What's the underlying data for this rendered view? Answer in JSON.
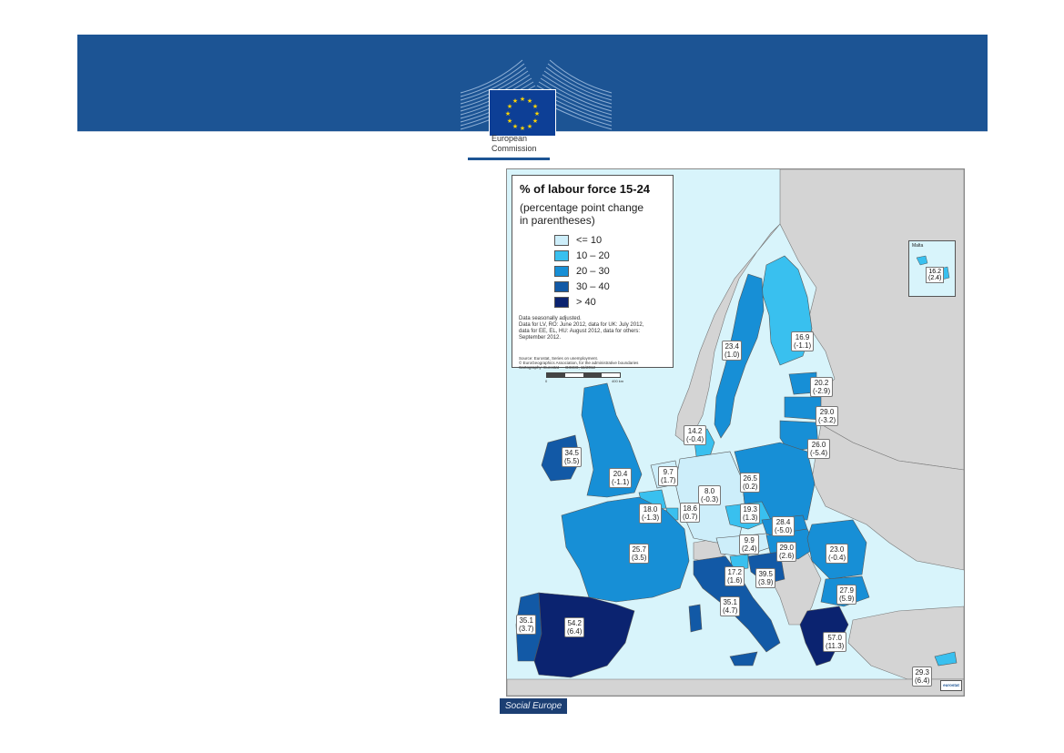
{
  "header": {
    "org_name_line1": "European",
    "org_name_line2": "Commission",
    "flag_icon": "eu-flag-icon",
    "banner_color": "#1c5494"
  },
  "map": {
    "title": "% of labour force 15-24",
    "subtitle_line1": "(percentage point change",
    "subtitle_line2": "in parentheses)",
    "legend": [
      {
        "label": "<= 10",
        "color": "#cdeefa"
      },
      {
        "label": "10 – 20",
        "color": "#39c0ef"
      },
      {
        "label": "20 – 30",
        "color": "#178fd6"
      },
      {
        "label": "30 – 40",
        "color": "#1259a6"
      },
      {
        "label": "> 40",
        "color": "#0b2370"
      }
    ],
    "notes": [
      "Data seasonally adjusted.",
      "Data for LV, RO: June 2012, data for UK: July 2012,",
      "data for EE, EL, HU: August 2012, data for others:",
      "September 2012."
    ],
    "source": [
      "Source: Eurostat, Series on unemployment.",
      "© EuroGeographics Association, for the administrative boundaries",
      "Cartography: Eurostat — GISCO, 11/2012"
    ],
    "scale_start": "0",
    "scale_end": "400 km",
    "inset_name": "Malta",
    "inset_value": {
      "value": "16.2",
      "change": "(2.4)"
    },
    "logo_text": "eurostat",
    "labels": [
      {
        "id": "finland",
        "value": "16.9",
        "change": "(-1.1)"
      },
      {
        "id": "sweden",
        "value": "23.4",
        "change": "(1.0)"
      },
      {
        "id": "estonia",
        "value": "20.2",
        "change": "(-2.9)"
      },
      {
        "id": "latvia",
        "value": "29.0",
        "change": "(-3.2)"
      },
      {
        "id": "lithuania",
        "value": "26.0",
        "change": "(-5.4)"
      },
      {
        "id": "denmark",
        "value": "14.2",
        "change": "(-0.4)"
      },
      {
        "id": "ireland",
        "value": "34.5",
        "change": "(5.5)"
      },
      {
        "id": "uk",
        "value": "20.4",
        "change": "(-1.1)"
      },
      {
        "id": "netherlands",
        "value": "9.7",
        "change": "(1.7)"
      },
      {
        "id": "germany",
        "value": "8.0",
        "change": "(-0.3)"
      },
      {
        "id": "poland",
        "value": "26.5",
        "change": "(0.2)"
      },
      {
        "id": "belgium",
        "value": "18.0",
        "change": "(-1.3)"
      },
      {
        "id": "luxembourg",
        "value": "18.6",
        "change": "(0.7)"
      },
      {
        "id": "czechia",
        "value": "19.3",
        "change": "(1.3)"
      },
      {
        "id": "slovakia",
        "value": "28.4",
        "change": "(-5.0)"
      },
      {
        "id": "france",
        "value": "25.7",
        "change": "(3.5)"
      },
      {
        "id": "austria",
        "value": "9.9",
        "change": "(2.4)"
      },
      {
        "id": "hungary",
        "value": "29.0",
        "change": "(2.6)"
      },
      {
        "id": "romania",
        "value": "23.0",
        "change": "(-0.4)"
      },
      {
        "id": "slovenia",
        "value": "17.2",
        "change": "(1.6)"
      },
      {
        "id": "croatia",
        "value": "39.5",
        "change": "(3.9)"
      },
      {
        "id": "bulgaria",
        "value": "27.9",
        "change": "(5.9)"
      },
      {
        "id": "italy",
        "value": "35.1",
        "change": "(4.7)"
      },
      {
        "id": "portugal",
        "value": "35.1",
        "change": "(3.7)"
      },
      {
        "id": "spain",
        "value": "54.2",
        "change": "(6.4)"
      },
      {
        "id": "greece",
        "value": "57.0",
        "change": "(11.3)"
      },
      {
        "id": "cyprus",
        "value": "29.3",
        "change": "(6.4)"
      }
    ]
  },
  "footer": {
    "tag": "Social Europe"
  }
}
